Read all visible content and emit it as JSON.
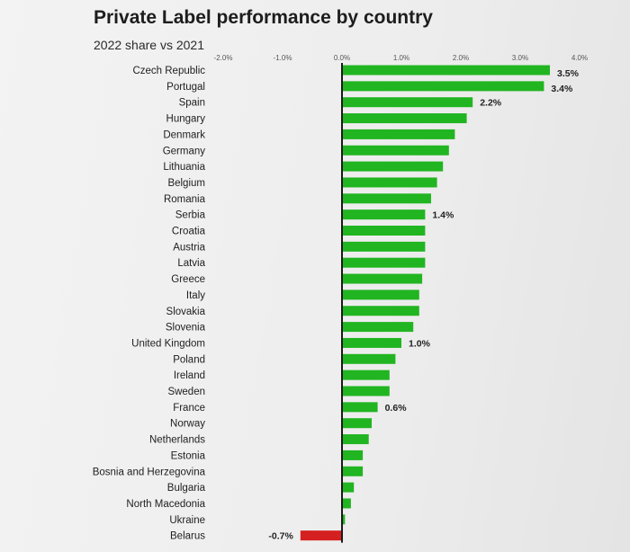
{
  "header": {
    "title": "Private Label performance by country",
    "subtitle": "2022 share vs 2021"
  },
  "chart_data": {
    "type": "bar",
    "orientation": "horizontal",
    "title": "Private Label performance by country",
    "subtitle": "2022 share vs 2021",
    "xlabel": "",
    "ylabel": "",
    "xlim": [
      -2.0,
      4.0
    ],
    "xticks": [
      "-2.0%",
      "-1.0%",
      "0.0%",
      "1.0%",
      "2.0%",
      "3.0%",
      "4.0%"
    ],
    "xtick_values": [
      -2.0,
      -1.0,
      0.0,
      1.0,
      2.0,
      3.0,
      4.0
    ],
    "grid": false,
    "positive_color": "#21b521",
    "negative_color": "#d42020",
    "categories": [
      "Czech Republic",
      "Portugal",
      "Spain",
      "Hungary",
      "Denmark",
      "Germany",
      "Lithuania",
      "Belgium",
      "Romania",
      "Serbia",
      "Croatia",
      "Austria",
      "Latvia",
      "Greece",
      "Italy",
      "Slovakia",
      "Slovenia",
      "United Kingdom",
      "Poland",
      "Ireland",
      "Sweden",
      "France",
      "Norway",
      "Netherlands",
      "Estonia",
      "Bosnia and Herzegovina",
      "Bulgaria",
      "North Macedonia",
      "Ukraine",
      "Belarus"
    ],
    "values": [
      3.5,
      3.4,
      2.2,
      2.1,
      1.9,
      1.8,
      1.7,
      1.6,
      1.5,
      1.4,
      1.4,
      1.4,
      1.4,
      1.35,
      1.3,
      1.3,
      1.2,
      1.0,
      0.9,
      0.8,
      0.8,
      0.6,
      0.5,
      0.45,
      0.35,
      0.35,
      0.2,
      0.15,
      0.05,
      -0.7
    ],
    "data_labels": [
      {
        "category": "Czech Republic",
        "text": "3.5%"
      },
      {
        "category": "Portugal",
        "text": "3.4%"
      },
      {
        "category": "Spain",
        "text": "2.2%"
      },
      {
        "category": "Serbia",
        "text": "1.4%"
      },
      {
        "category": "United Kingdom",
        "text": "1.0%"
      },
      {
        "category": "France",
        "text": "0.6%"
      },
      {
        "category": "Belarus",
        "text": "-0.7%"
      }
    ]
  }
}
